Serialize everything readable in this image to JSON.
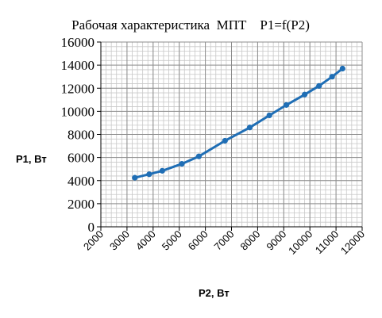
{
  "chart_data": {
    "type": "line",
    "title": "Рабочая характеристика  МПТ    P1=f(P2)",
    "xlabel": "P2, Вт",
    "ylabel": "P1, Вт",
    "xlim": [
      2000,
      12000
    ],
    "ylim": [
      0,
      16000
    ],
    "x_ticks": [
      2000,
      3000,
      4000,
      5000,
      6000,
      7000,
      8000,
      9000,
      10000,
      11000,
      12000
    ],
    "y_ticks": [
      0,
      2000,
      4000,
      6000,
      8000,
      10000,
      12000,
      14000,
      16000
    ],
    "x_minor_step": 200,
    "y_minor_step": 400,
    "grid": true,
    "series": [
      {
        "name": "",
        "color": "#1f6eb5",
        "markers": true,
        "x": [
          3300,
          3850,
          4350,
          5100,
          5750,
          6750,
          7700,
          8450,
          9100,
          9800,
          10350,
          10850,
          11250
        ],
        "y": [
          4250,
          4550,
          4850,
          5450,
          6100,
          7450,
          8600,
          9650,
          10550,
          11450,
          12200,
          13000,
          13700
        ]
      }
    ]
  }
}
